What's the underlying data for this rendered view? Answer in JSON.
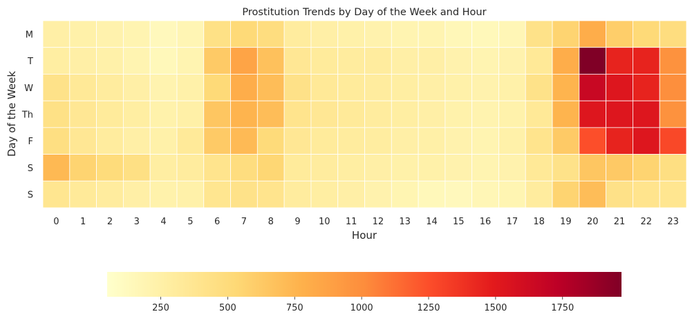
{
  "chart_data": {
    "type": "heatmap",
    "title": "Prostitution Trends by Day of the Week and Hour",
    "xlabel": "Hour",
    "ylabel": "Day of the Week",
    "x": [
      "0",
      "1",
      "2",
      "3",
      "4",
      "5",
      "6",
      "7",
      "8",
      "9",
      "10",
      "11",
      "12",
      "13",
      "14",
      "15",
      "16",
      "17",
      "18",
      "19",
      "20",
      "21",
      "22",
      "23"
    ],
    "y": [
      "M",
      "T",
      "W",
      "Th",
      "F",
      "S",
      "S"
    ],
    "values": [
      [
        260,
        240,
        220,
        200,
        140,
        180,
        440,
        520,
        480,
        300,
        260,
        240,
        220,
        200,
        200,
        160,
        150,
        170,
        420,
        560,
        800,
        600,
        520,
        480
      ],
      [
        280,
        260,
        240,
        200,
        150,
        200,
        620,
        860,
        680,
        360,
        320,
        300,
        300,
        260,
        260,
        220,
        200,
        220,
        340,
        800,
        1970,
        1450,
        1450,
        980
      ],
      [
        420,
        340,
        300,
        260,
        210,
        240,
        520,
        800,
        700,
        430,
        340,
        320,
        300,
        280,
        260,
        240,
        220,
        240,
        420,
        760,
        1660,
        1530,
        1450,
        1000
      ],
      [
        440,
        360,
        320,
        280,
        230,
        250,
        650,
        760,
        700,
        400,
        360,
        330,
        300,
        280,
        260,
        230,
        210,
        230,
        340,
        760,
        1530,
        1530,
        1530,
        980
      ],
      [
        460,
        360,
        300,
        260,
        240,
        330,
        620,
        720,
        510,
        360,
        320,
        300,
        290,
        260,
        250,
        220,
        200,
        240,
        400,
        620,
        1250,
        1450,
        1530,
        1280
      ],
      [
        730,
        560,
        500,
        450,
        280,
        300,
        400,
        480,
        540,
        320,
        300,
        280,
        260,
        240,
        240,
        220,
        200,
        220,
        340,
        420,
        650,
        630,
        560,
        460
      ],
      [
        380,
        330,
        300,
        260,
        230,
        240,
        380,
        420,
        400,
        300,
        280,
        260,
        220,
        190,
        150,
        140,
        170,
        190,
        300,
        560,
        700,
        430,
        400,
        380
      ]
    ],
    "colorbar": {
      "vmin": 50,
      "vmax": 1970,
      "ticks": [
        "250",
        "500",
        "750",
        "1000",
        "1250",
        "1500",
        "1750"
      ],
      "tick_values": [
        250,
        500,
        750,
        1000,
        1250,
        1500,
        1750
      ],
      "orientation": "horizontal",
      "colormap": "YlOrRd"
    },
    "grid": false,
    "cell_border_color": "#ffffff"
  }
}
